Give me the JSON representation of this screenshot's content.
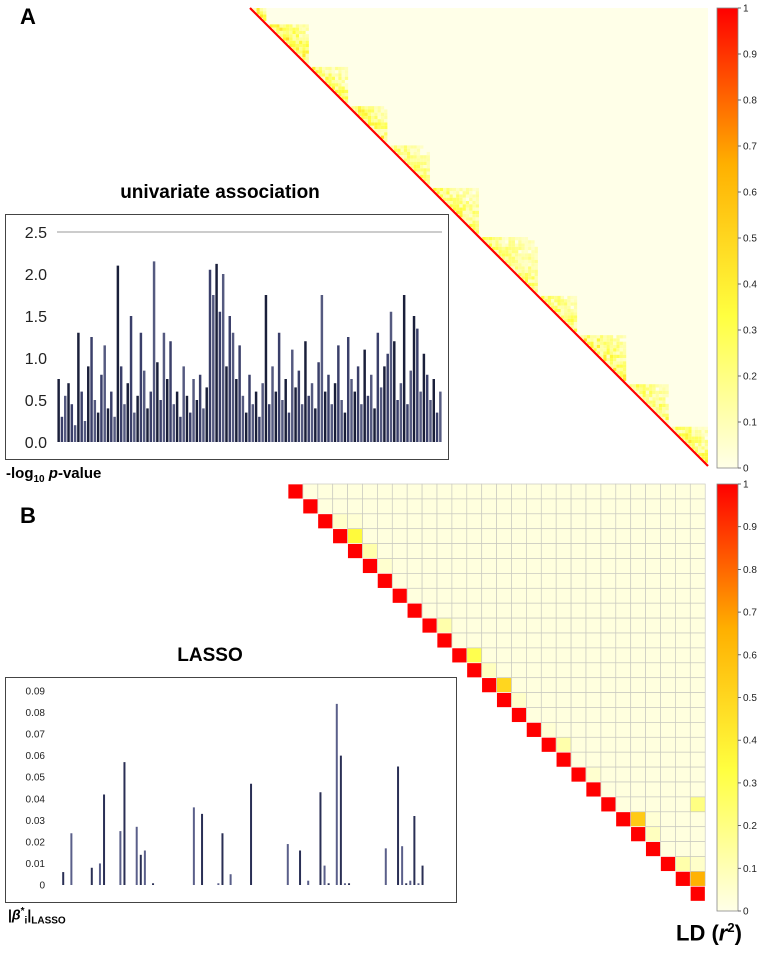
{
  "panels": {
    "a": {
      "letter": "A"
    },
    "b": {
      "letter": "B"
    }
  },
  "colorbar_label": "LD (r²)",
  "colorbar_label_parts": {
    "prefix": "LD (",
    "var": "r",
    "sup": "2",
    "suffix": ")"
  },
  "colormap": {
    "low": "#ffffe8",
    "mid1": "#ffff40",
    "mid2": "#ffb000",
    "high": "#ff0000"
  },
  "chart_data": [
    {
      "type": "bar",
      "title": "univariate association",
      "ylabel": "-log10 p-value",
      "ylabel_parts": {
        "prefix": "-log",
        "sub": "10",
        "italic": "p",
        "suffix": "-value"
      },
      "ylim": [
        0,
        2.5
      ],
      "yticks": [
        "0.0",
        "0.5",
        "1.0",
        "1.5",
        "2.0",
        "2.5"
      ],
      "ytick_values": [
        0,
        0.5,
        1.0,
        1.5,
        2.0,
        2.5
      ],
      "grid": false,
      "series": [
        {
          "values": [
            0.75,
            0.3,
            0.55,
            0.7,
            0.45,
            0.2,
            1.3,
            0.6,
            0.25,
            0.9,
            1.25,
            0.5,
            0.35,
            0.8,
            1.15,
            0.4,
            0.6,
            0.3,
            2.1,
            0.9,
            0.45,
            0.7,
            1.5,
            0.35,
            0.55,
            1.3,
            0.85,
            0.4,
            0.6,
            2.15,
            0.95,
            0.5,
            1.3,
            0.75,
            1.2,
            0.45,
            0.6,
            0.3,
            0.9,
            0.55,
            0.35,
            0.75,
            0.5,
            0.8,
            0.4,
            0.65,
            2.05,
            1.75,
            2.12,
            1.55,
            2.0,
            0.9,
            1.5,
            1.3,
            0.75,
            1.15,
            0.55,
            0.35,
            0.8,
            0.45,
            0.6,
            0.3,
            0.7,
            1.75,
            0.45,
            0.9,
            0.6,
            1.3,
            0.5,
            0.75,
            0.35,
            1.1,
            0.65,
            0.85,
            0.45,
            1.2,
            0.55,
            0.7,
            0.4,
            0.95,
            1.75,
            0.6,
            0.8,
            0.45,
            0.7,
            1.15,
            0.5,
            0.35,
            1.25,
            0.75,
            0.6,
            0.9,
            0.45,
            1.1,
            0.55,
            0.8,
            0.4,
            1.3,
            0.65,
            0.9,
            1.05,
            1.55,
            1.2,
            0.5,
            0.7,
            1.75,
            0.45,
            0.85,
            1.5,
            1.35,
            0.6,
            1.05,
            0.8,
            0.5,
            0.75,
            0.35,
            0.6
          ]
        }
      ]
    },
    {
      "type": "bar",
      "title": "LASSO",
      "ylabel": "|β*i|LASSO",
      "ylabel_parts": {
        "bar_open": "|",
        "beta": "β",
        "star": "*",
        "sub_i": "i",
        "bar_close": "|",
        "sub": "LASSO"
      },
      "ylim": [
        0,
        0.09
      ],
      "yticks": [
        "0",
        "0.01",
        "0.02",
        "0.03",
        "0.04",
        "0.05",
        "0.06",
        "0.07",
        "0.08",
        "0.09"
      ],
      "ytick_values": [
        0,
        0.01,
        0.02,
        0.03,
        0.04,
        0.05,
        0.06,
        0.07,
        0.08,
        0.09
      ],
      "grid": false,
      "x_count": 120,
      "series": [
        {
          "x": [
            2,
            4,
            9,
            11,
            12,
            16,
            17,
            20,
            21,
            22,
            24,
            34,
            36,
            40,
            41,
            43,
            48,
            57,
            60,
            62,
            65,
            66,
            67,
            69,
            70,
            71,
            72,
            81,
            84,
            85,
            86,
            87,
            88,
            89,
            90
          ],
          "values": [
            0.006,
            0.024,
            0.008,
            0.01,
            0.042,
            0.025,
            0.057,
            0.027,
            0.014,
            0.016,
            0.0,
            0.036,
            0.033,
            0.0,
            0.024,
            0.005,
            0.047,
            0.019,
            0.016,
            0.002,
            0.043,
            0.009,
            0.0,
            0.084,
            0.06,
            0.0,
            0.0,
            0.017,
            0.055,
            0.018,
            0.0,
            0.002,
            0.032,
            0.0,
            0.009
          ]
        }
      ]
    },
    {
      "type": "heatmap",
      "title": "",
      "description_labels": [],
      "n": 140,
      "colorbar_ticks": [
        "0",
        "0.1",
        "0.2",
        "0.3",
        "0.4",
        "0.5",
        "0.6",
        "0.7",
        "0.8",
        "0.9",
        "1"
      ],
      "colorbar_tick_values": [
        0,
        0.1,
        0.2,
        0.3,
        0.4,
        0.5,
        0.6,
        0.7,
        0.8,
        0.9,
        1
      ],
      "blocks": [
        [
          0,
          5,
          0.45
        ],
        [
          5,
          18,
          0.4
        ],
        [
          18,
          30,
          0.3
        ],
        [
          30,
          42,
          0.35
        ],
        [
          42,
          55,
          0.25
        ],
        [
          55,
          70,
          0.3
        ],
        [
          70,
          88,
          0.25
        ],
        [
          88,
          100,
          0.3
        ],
        [
          100,
          115,
          0.35
        ],
        [
          115,
          128,
          0.3
        ],
        [
          128,
          140,
          0.35
        ]
      ]
    },
    {
      "type": "heatmap",
      "title": "",
      "n": 28,
      "colorbar_ticks": [
        "0",
        "0.1",
        "0.2",
        "0.3",
        "0.4",
        "0.5",
        "0.6",
        "0.7",
        "0.8",
        "0.9",
        "1"
      ],
      "colorbar_tick_values": [
        0,
        0.1,
        0.2,
        0.3,
        0.4,
        0.5,
        0.6,
        0.7,
        0.8,
        0.9,
        1
      ],
      "offdiag": [
        [
          2,
          3,
          0.06
        ],
        [
          3,
          4,
          0.35
        ],
        [
          4,
          5,
          0.12
        ],
        [
          2,
          4,
          0.04
        ],
        [
          5,
          6,
          0.05
        ],
        [
          9,
          10,
          0.12
        ],
        [
          11,
          12,
          0.3
        ],
        [
          12,
          13,
          0.08
        ],
        [
          13,
          14,
          0.5
        ],
        [
          14,
          15,
          0.06
        ],
        [
          16,
          17,
          0.04
        ],
        [
          17,
          18,
          0.12
        ],
        [
          19,
          20,
          0.05
        ],
        [
          22,
          23,
          0.55
        ],
        [
          22,
          24,
          0.04
        ],
        [
          23,
          24,
          0.08
        ],
        [
          26,
          27,
          0.65
        ],
        [
          25,
          26,
          0.12
        ],
        [
          25,
          27,
          0.06
        ],
        [
          21,
          27,
          0.2
        ]
      ]
    }
  ]
}
